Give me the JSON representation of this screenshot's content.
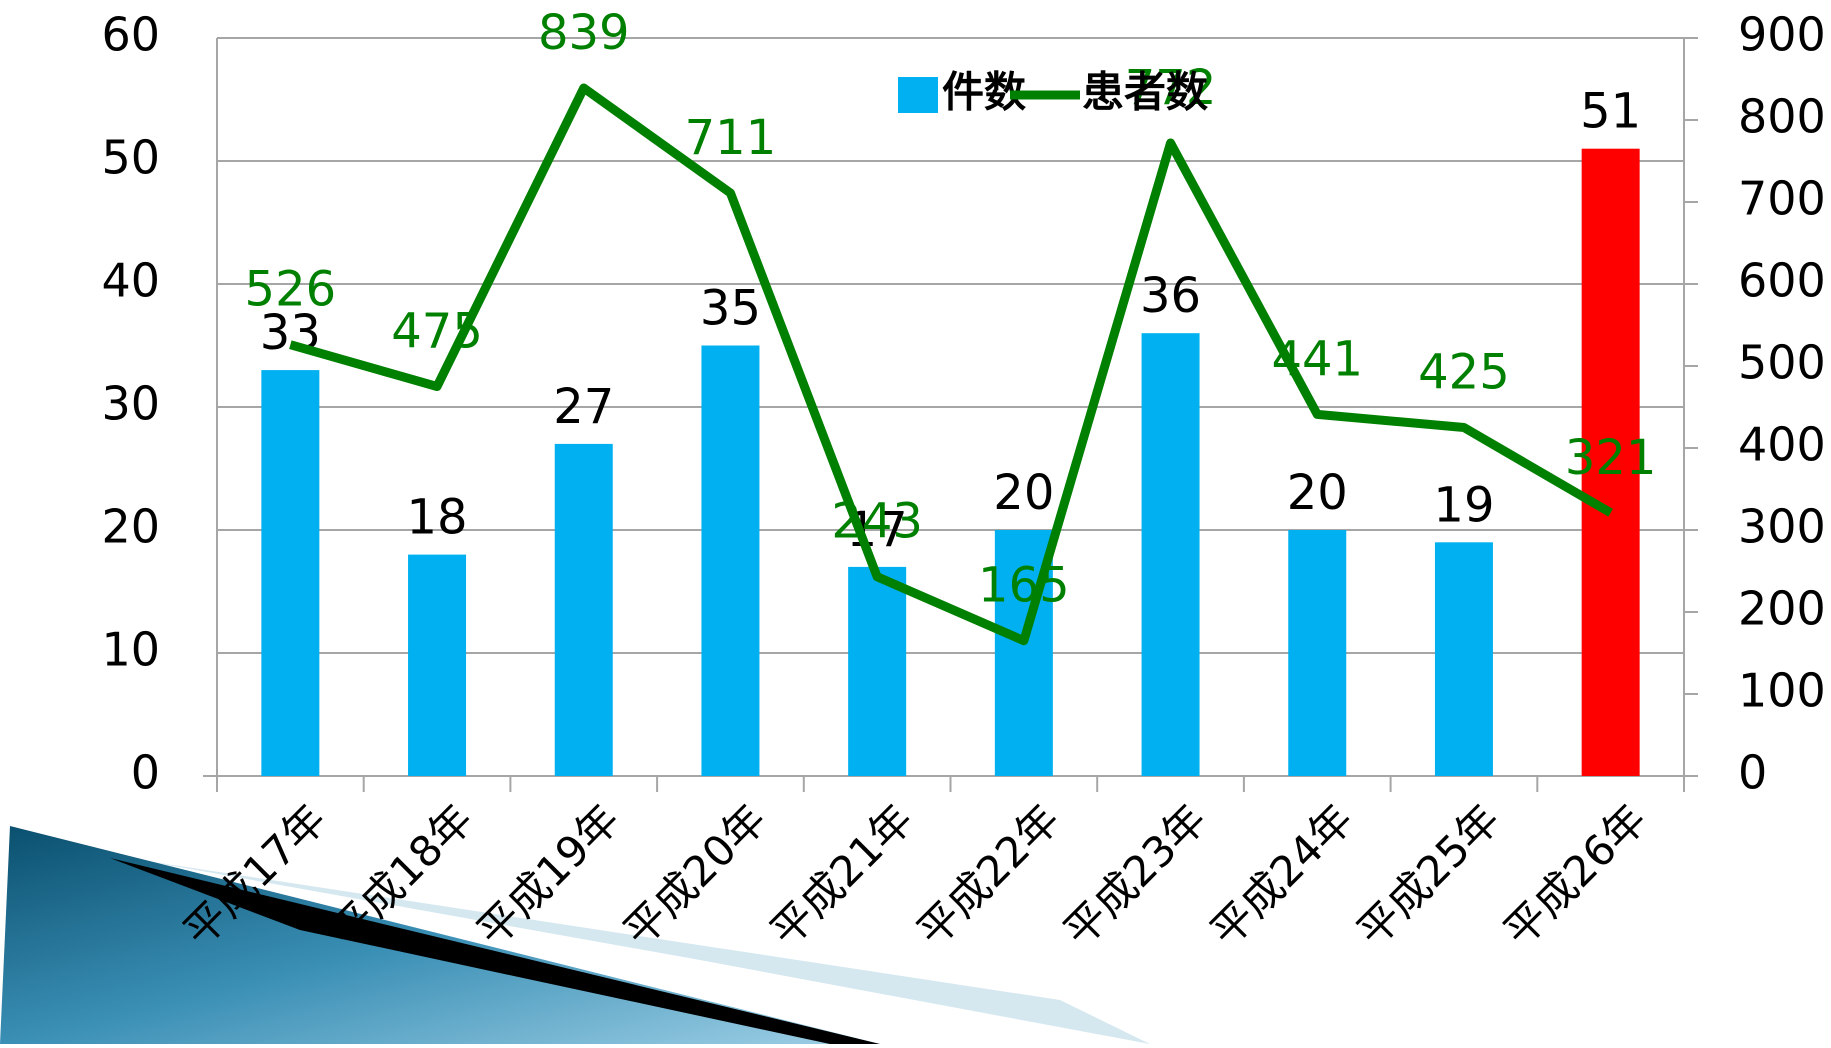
{
  "chart_data": {
    "type": "bar",
    "categories": [
      "平成17年",
      "平成18年",
      "平成19年",
      "平成20年",
      "平成21年",
      "平成22年",
      "平成23年",
      "平成24年",
      "平成25年",
      "平成26年"
    ],
    "series": [
      {
        "name": "件数",
        "color": "#00b0f0",
        "colors": [
          "#00b0f0",
          "#00b0f0",
          "#00b0f0",
          "#00b0f0",
          "#00b0f0",
          "#00b0f0",
          "#00b0f0",
          "#00b0f0",
          "#00b0f0",
          "#ff0000"
        ],
        "values": [
          33,
          18,
          27,
          35,
          17,
          20,
          36,
          20,
          19,
          51
        ]
      },
      {
        "name": "患者数",
        "type": "line",
        "axis": "y2",
        "color": "#008000",
        "values": [
          526,
          475,
          839,
          711,
          243,
          165,
          772,
          441,
          425,
          321
        ]
      }
    ],
    "ylim": [
      0,
      60
    ],
    "yticks": [
      0,
      10,
      20,
      30,
      40,
      50,
      60
    ],
    "y2lim": [
      0,
      900
    ],
    "y2ticks": [
      0,
      100,
      200,
      300,
      400,
      500,
      600,
      700,
      800,
      900
    ],
    "grid": true,
    "legend": "top"
  }
}
